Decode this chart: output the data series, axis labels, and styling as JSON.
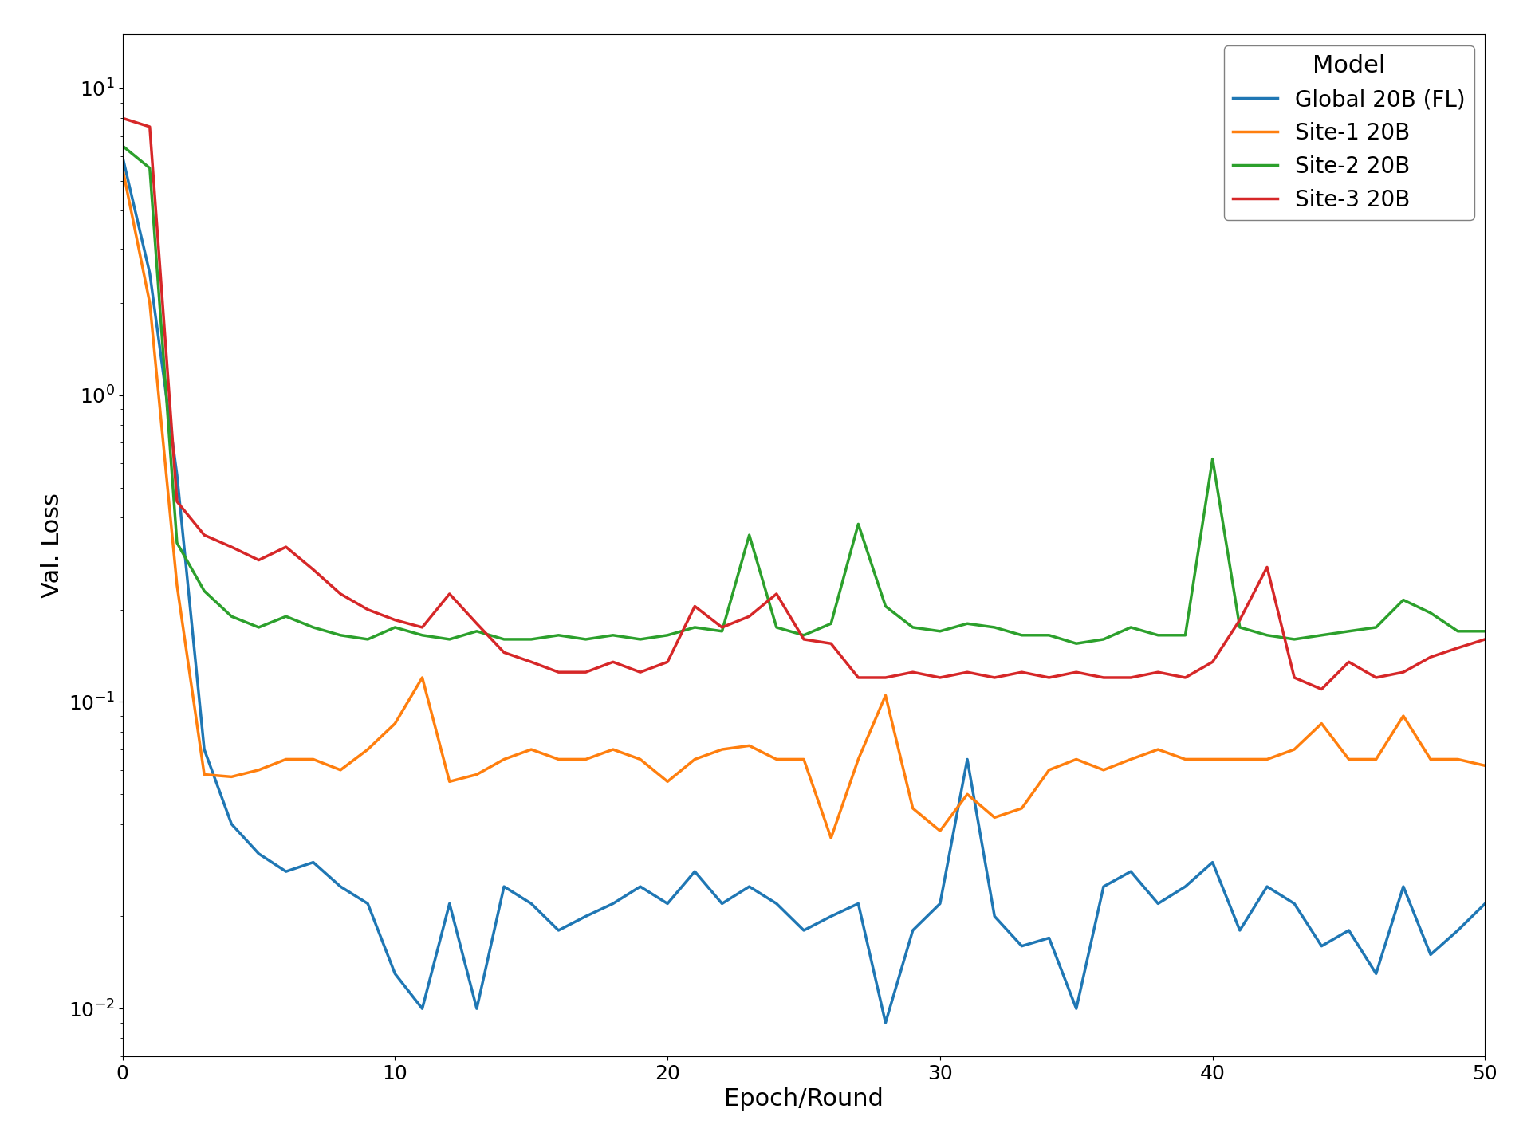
{
  "title": "",
  "xlabel": "Epoch/Round",
  "ylabel": "Val. Loss",
  "legend_title": "Model",
  "xlim": [
    0,
    50
  ],
  "ylim_log": [
    0.007,
    15
  ],
  "series": {
    "Global 20B (FL)": {
      "color": "#1f77b4",
      "x": [
        0,
        1,
        2,
        3,
        4,
        5,
        6,
        7,
        8,
        9,
        10,
        11,
        12,
        13,
        14,
        15,
        16,
        17,
        18,
        19,
        20,
        21,
        22,
        23,
        24,
        25,
        26,
        27,
        28,
        29,
        30,
        31,
        32,
        33,
        34,
        35,
        36,
        37,
        38,
        39,
        40,
        41,
        42,
        43,
        44,
        45,
        46,
        47,
        48,
        49,
        50
      ],
      "y": [
        6.0,
        2.5,
        0.55,
        0.07,
        0.04,
        0.032,
        0.028,
        0.03,
        0.025,
        0.022,
        0.013,
        0.01,
        0.022,
        0.01,
        0.025,
        0.022,
        0.018,
        0.02,
        0.022,
        0.025,
        0.022,
        0.028,
        0.022,
        0.025,
        0.022,
        0.018,
        0.02,
        0.022,
        0.009,
        0.018,
        0.022,
        0.065,
        0.02,
        0.016,
        0.017,
        0.01,
        0.025,
        0.028,
        0.022,
        0.025,
        0.03,
        0.018,
        0.025,
        0.022,
        0.016,
        0.018,
        0.013,
        0.025,
        0.015,
        0.018,
        0.022
      ]
    },
    "Site-1 20B": {
      "color": "#ff7f0e",
      "x": [
        0,
        1,
        2,
        3,
        4,
        5,
        6,
        7,
        8,
        9,
        10,
        11,
        12,
        13,
        14,
        15,
        16,
        17,
        18,
        19,
        20,
        21,
        22,
        23,
        24,
        25,
        26,
        27,
        28,
        29,
        30,
        31,
        32,
        33,
        34,
        35,
        36,
        37,
        38,
        39,
        40,
        41,
        42,
        43,
        44,
        45,
        46,
        47,
        48,
        49,
        50
      ],
      "y": [
        5.5,
        2.0,
        0.24,
        0.058,
        0.057,
        0.06,
        0.065,
        0.065,
        0.06,
        0.07,
        0.085,
        0.12,
        0.055,
        0.058,
        0.065,
        0.07,
        0.065,
        0.065,
        0.07,
        0.065,
        0.055,
        0.065,
        0.07,
        0.072,
        0.065,
        0.065,
        0.036,
        0.065,
        0.105,
        0.045,
        0.038,
        0.05,
        0.042,
        0.045,
        0.06,
        0.065,
        0.06,
        0.065,
        0.07,
        0.065,
        0.065,
        0.065,
        0.065,
        0.07,
        0.085,
        0.065,
        0.065,
        0.09,
        0.065,
        0.065,
        0.062
      ]
    },
    "Site-2 20B": {
      "color": "#2ca02c",
      "x": [
        0,
        1,
        2,
        3,
        4,
        5,
        6,
        7,
        8,
        9,
        10,
        11,
        12,
        13,
        14,
        15,
        16,
        17,
        18,
        19,
        20,
        21,
        22,
        23,
        24,
        25,
        26,
        27,
        28,
        29,
        30,
        31,
        32,
        33,
        34,
        35,
        36,
        37,
        38,
        39,
        40,
        41,
        42,
        43,
        44,
        45,
        46,
        47,
        48,
        49,
        50
      ],
      "y": [
        6.5,
        5.5,
        0.33,
        0.23,
        0.19,
        0.175,
        0.19,
        0.175,
        0.165,
        0.16,
        0.175,
        0.165,
        0.16,
        0.17,
        0.16,
        0.16,
        0.165,
        0.16,
        0.165,
        0.16,
        0.165,
        0.175,
        0.17,
        0.35,
        0.175,
        0.165,
        0.18,
        0.38,
        0.205,
        0.175,
        0.17,
        0.18,
        0.175,
        0.165,
        0.165,
        0.155,
        0.16,
        0.175,
        0.165,
        0.165,
        0.62,
        0.175,
        0.165,
        0.16,
        0.165,
        0.17,
        0.175,
        0.215,
        0.195,
        0.17,
        0.17
      ]
    },
    "Site-3 20B": {
      "color": "#d62728",
      "x": [
        0,
        1,
        2,
        3,
        4,
        5,
        6,
        7,
        8,
        9,
        10,
        11,
        12,
        13,
        14,
        15,
        16,
        17,
        18,
        19,
        20,
        21,
        22,
        23,
        24,
        25,
        26,
        27,
        28,
        29,
        30,
        31,
        32,
        33,
        34,
        35,
        36,
        37,
        38,
        39,
        40,
        41,
        42,
        43,
        44,
        45,
        46,
        47,
        48,
        49,
        50
      ],
      "y": [
        8.0,
        7.5,
        0.45,
        0.35,
        0.32,
        0.29,
        0.32,
        0.27,
        0.225,
        0.2,
        0.185,
        0.175,
        0.225,
        0.18,
        0.145,
        0.135,
        0.125,
        0.125,
        0.135,
        0.125,
        0.135,
        0.205,
        0.175,
        0.19,
        0.225,
        0.16,
        0.155,
        0.12,
        0.12,
        0.125,
        0.12,
        0.125,
        0.12,
        0.125,
        0.12,
        0.125,
        0.12,
        0.12,
        0.125,
        0.12,
        0.135,
        0.185,
        0.275,
        0.12,
        0.11,
        0.135,
        0.12,
        0.125,
        0.14,
        0.15,
        0.16
      ]
    }
  },
  "figsize": [
    19.2,
    14.4
  ],
  "dpi": 100
}
